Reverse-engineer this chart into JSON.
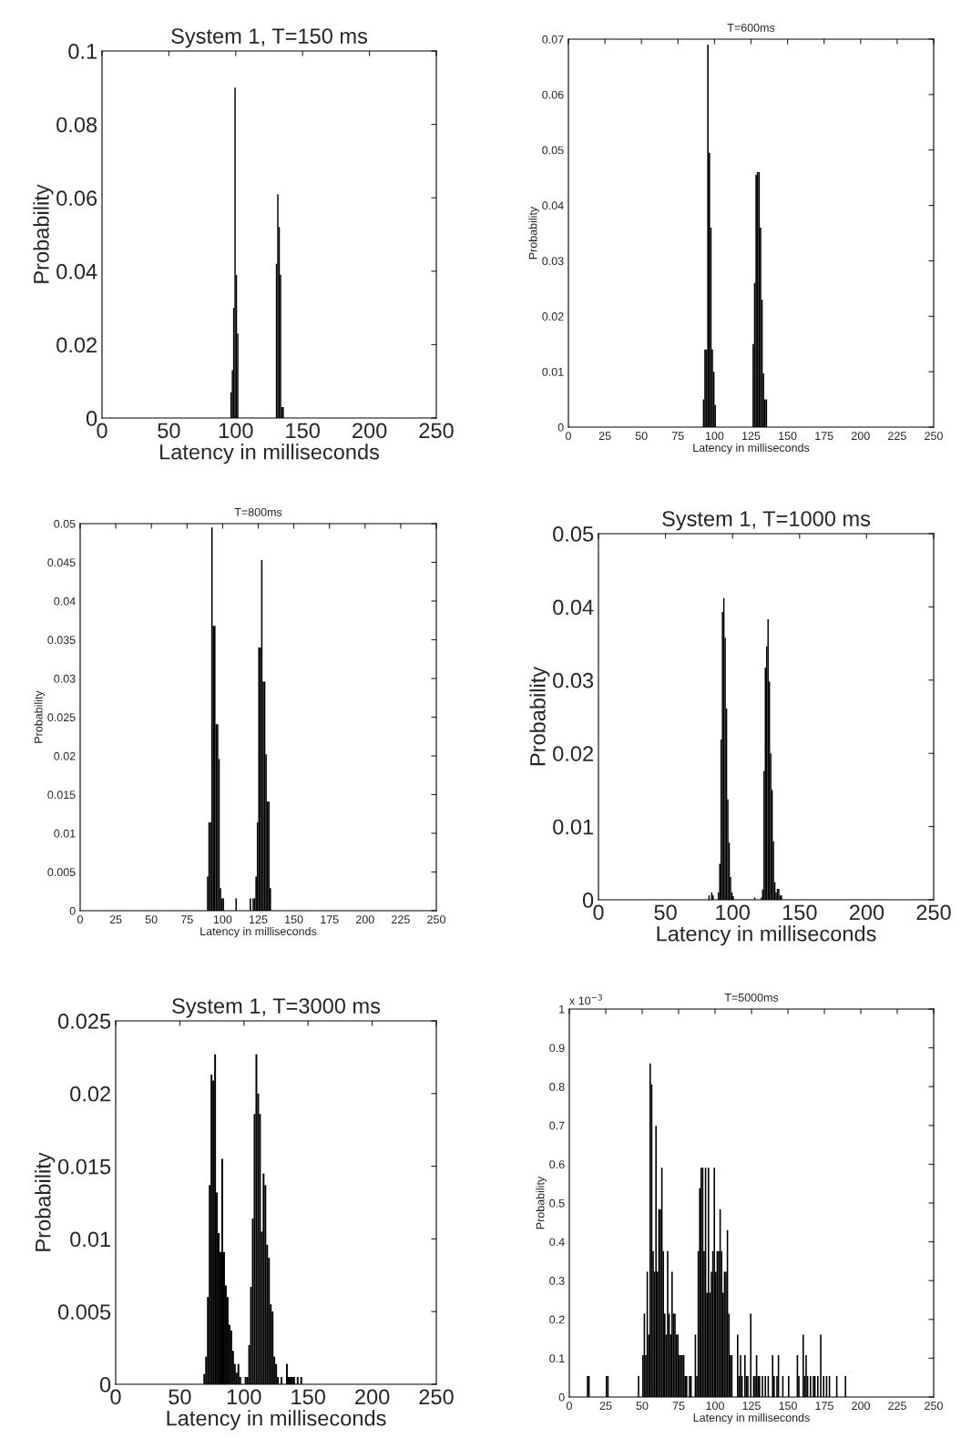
{
  "chart_data": [
    {
      "type": "histogram",
      "title": "System 1, T=150 ms",
      "xlabel": "Latency in milliseconds",
      "ylabel": "Probability",
      "color": "#000000",
      "bins": [
        96,
        97,
        98,
        99,
        100,
        101,
        102,
        130,
        131,
        132,
        133,
        134,
        135,
        136
      ],
      "values": [
        0.007,
        0.013,
        0.03,
        0.09,
        0.039,
        0.023,
        0,
        0.042,
        0.061,
        0.052,
        0.039,
        0.003,
        0.003
      ],
      "xlim": [
        0,
        250
      ],
      "ylim": [
        0,
        0.1
      ],
      "xticks": [
        0,
        50,
        100,
        150,
        200,
        250
      ],
      "yticks": [
        0,
        0.02,
        0.04,
        0.06,
        0.08,
        0.1
      ]
    },
    {
      "type": "histogram",
      "title": "T=600ms",
      "xlabel": "Latency in milliseconds",
      "ylabel": "Probability",
      "color": "#000000",
      "bins": [
        92,
        93,
        94,
        95,
        96,
        97,
        98,
        99,
        100,
        101,
        126,
        127,
        128,
        129,
        130,
        131,
        132,
        133,
        134,
        135,
        136
      ],
      "values": [
        0.005,
        0.014,
        0.014,
        0.069,
        0.0495,
        0.036,
        0.014,
        0.01,
        0.004,
        0,
        0.015,
        0.026,
        0.0455,
        0.046,
        0.046,
        0.036,
        0.023,
        0.0097,
        0.005,
        0.005
      ],
      "xlim": [
        0,
        250
      ],
      "ylim": [
        0,
        0.07
      ],
      "xticks": [
        0,
        25,
        50,
        75,
        100,
        125,
        150,
        175,
        200,
        225,
        250
      ],
      "yticks": [
        0,
        0.01,
        0.02,
        0.03,
        0.04,
        0.05,
        0.06,
        0.07
      ]
    },
    {
      "type": "histogram",
      "title": "T=800ms",
      "xlabel": "Latency in milliseconds",
      "ylabel": "Probability",
      "color": "#000000",
      "bins": [
        89,
        90,
        91,
        92,
        93,
        94,
        95,
        96,
        97,
        98,
        99,
        100,
        101,
        109,
        110,
        119,
        120,
        121,
        122,
        123,
        124,
        125,
        126,
        127,
        128,
        129,
        130,
        131,
        132,
        133,
        134
      ],
      "values": [
        0.0044,
        0.0114,
        0.0114,
        0.0495,
        0.0368,
        0.0368,
        0.0241,
        0.0241,
        0.0196,
        0.0029,
        0.0016,
        0.0016,
        0,
        0.0016,
        0,
        0.0016,
        0,
        0.0016,
        0.0016,
        0.0044,
        0.0114,
        0.034,
        0.034,
        0.0453,
        0.0296,
        0.0296,
        0.0202,
        0.0141,
        0.0141,
        0.0029
      ],
      "xlim": [
        0,
        250
      ],
      "ylim": [
        0,
        0.05
      ],
      "xticks": [
        0,
        25,
        50,
        75,
        100,
        125,
        150,
        175,
        200,
        225,
        250
      ],
      "yticks": [
        0,
        0.005,
        0.01,
        0.015,
        0.02,
        0.025,
        0.03,
        0.035,
        0.04,
        0.045,
        0.05
      ]
    },
    {
      "type": "histogram",
      "title": "System 1, T=1000 ms",
      "xlabel": "Latency in milliseconds",
      "ylabel": "Probability",
      "color": "#000000",
      "bins": [
        82,
        83,
        84,
        85,
        86,
        89,
        90,
        91,
        92,
        93,
        94,
        95,
        96,
        97,
        98,
        99,
        100,
        101,
        116,
        117,
        121,
        122,
        123,
        124,
        125,
        126,
        127,
        128,
        129,
        130,
        131,
        132,
        133,
        134,
        135,
        136,
        137
      ],
      "values": [
        0.0006,
        0,
        0.001,
        0.0006,
        0,
        0.001,
        0.0049,
        0.0219,
        0.0393,
        0.0412,
        0.0358,
        0.0261,
        0.0137,
        0.0078,
        0.0031,
        0.001,
        0.0005,
        0,
        0.0003,
        0,
        0.0003,
        0.0014,
        0.0176,
        0.0317,
        0.0346,
        0.0383,
        0.0298,
        0.02,
        0.015,
        0.008,
        0.0024,
        0.001,
        0.0015,
        0.0015,
        0.0006,
        0.0006
      ],
      "xlim": [
        0,
        250
      ],
      "ylim": [
        0,
        0.05
      ],
      "xticks": [
        0,
        50,
        100,
        150,
        200,
        250
      ],
      "yticks": [
        0,
        0.01,
        0.02,
        0.03,
        0.04,
        0.05
      ]
    },
    {
      "type": "histogram",
      "title": "System 1, T=3000 ms",
      "xlabel": "Latency in milliseconds",
      "ylabel": "Probability",
      "color": "#000000",
      "bins": [
        68.4,
        69.8,
        71.2,
        72.6,
        74,
        75.4,
        76.8,
        78.2,
        79.6,
        81,
        82.4,
        83.8,
        85.2,
        86.6,
        88,
        89.4,
        90.8,
        92.2,
        93.6,
        95,
        96.4,
        97.8,
        99.2,
        100.6,
        102,
        103.4,
        104.8,
        106.2,
        107.6,
        109,
        110.4,
        111.8,
        113.2,
        114.6,
        116,
        117.4,
        118.8,
        120.2,
        121.6,
        123,
        124.4,
        125.8,
        127.2,
        128.6,
        130,
        131.4,
        132.8,
        134.2,
        135.6,
        137,
        138.4,
        139.8,
        141.2,
        142.6,
        144,
        145.4
      ],
      "values": [
        0.0007,
        0.0019,
        0.006,
        0.0137,
        0.0213,
        0.0209,
        0.0227,
        0.0132,
        0.0104,
        0.0091,
        0.0155,
        0.0091,
        0.0068,
        0.006,
        0.0041,
        0.0037,
        0.0023,
        0.0014,
        0.0008,
        0.0014,
        0.0005,
        0,
        0,
        0.0005,
        0.0005,
        0.0027,
        0.0067,
        0.0114,
        0.0186,
        0.0227,
        0.02,
        0.0186,
        0.0105,
        0.0145,
        0.0137,
        0.0096,
        0.0087,
        0.0055,
        0.005,
        0.0019,
        0.0014,
        0.0005,
        0,
        0.0005,
        0,
        0,
        0.0014,
        0.0005,
        0.0005,
        0.0005,
        0.0005,
        0,
        0.0005,
        0,
        0.0005
      ],
      "xlim": [
        0,
        250
      ],
      "ylim": [
        0,
        0.025
      ],
      "xticks": [
        0,
        50,
        100,
        150,
        200,
        250
      ],
      "yticks": [
        0,
        0.005,
        0.01,
        0.015,
        0.02,
        0.025
      ]
    },
    {
      "type": "histogram",
      "title": "T=5000ms",
      "xlabel": "Latency in milliseconds",
      "ylabel": "Probability",
      "color": "#000000",
      "annotations": [
        "x 10$^{−3}$"
      ],
      "bins": [
        12,
        13,
        14,
        25,
        26,
        27,
        47,
        48,
        50,
        51,
        52,
        53,
        54,
        55,
        56,
        57,
        58,
        59,
        60,
        61,
        62,
        63,
        64,
        65,
        66,
        67,
        68,
        69,
        70,
        71,
        72,
        73,
        74,
        75,
        76,
        77,
        78,
        79,
        80,
        81,
        82,
        83,
        84,
        86,
        87,
        88,
        89,
        90,
        91,
        92,
        93,
        94,
        95,
        96,
        97,
        98,
        99,
        100,
        101,
        102,
        103,
        104,
        105,
        106,
        107,
        108,
        109,
        110,
        111,
        112,
        115,
        116,
        117,
        118,
        119,
        120,
        121,
        122,
        123,
        124,
        125,
        126,
        127,
        128,
        129,
        130,
        131,
        132,
        133,
        134,
        135,
        136,
        137,
        139,
        140,
        141,
        142,
        143,
        144,
        146,
        147,
        150,
        151,
        156,
        157,
        158,
        160,
        161,
        162,
        163,
        164,
        165,
        166,
        167,
        168,
        169,
        170,
        171,
        172,
        173,
        174,
        175,
        176,
        177,
        178,
        179,
        183,
        184,
        189,
        190
      ],
      "values": [
        0.054,
        0.054,
        0,
        0.054,
        0.054,
        0,
        0.054,
        0,
        0.108,
        0.215,
        0.108,
        0.323,
        0.161,
        0.86,
        0.806,
        0.376,
        0.323,
        0.699,
        0.323,
        0.484,
        0.484,
        0.591,
        0.376,
        0.215,
        0.161,
        0.376,
        0.215,
        0.161,
        0.323,
        0.215,
        0.215,
        0.161,
        0.161,
        0.108,
        0.108,
        0.108,
        0.108,
        0.054,
        0.054,
        0,
        0.054,
        0.054,
        0,
        0.161,
        0.054,
        0.376,
        0.538,
        0.591,
        0.591,
        0.376,
        0.591,
        0.269,
        0.591,
        0.269,
        0.323,
        0.376,
        0.591,
        0.323,
        0.376,
        0.376,
        0.484,
        0.376,
        0.269,
        0.323,
        0.323,
        0.43,
        0.215,
        0.108,
        0.108,
        0,
        0.161,
        0.054,
        0.108,
        0.054,
        0,
        0.108,
        0.054,
        0.054,
        0,
        0.215,
        0,
        0.054,
        0.054,
        0.108,
        0.054,
        0.054,
        0,
        0.054,
        0,
        0.054,
        0,
        0.054,
        0,
        0.108,
        0.054,
        0,
        0.054,
        0.108,
        0,
        0.054,
        0,
        0.054,
        0,
        0.108,
        0.054,
        0,
        0.161,
        0.054,
        0.108,
        0.054,
        0,
        0.054,
        0,
        0.054,
        0.054,
        0,
        0.054,
        0,
        0.161,
        0,
        0.054,
        0,
        0.054,
        0,
        0.054,
        0,
        0.054,
        0,
        0.054
      ],
      "xlim": [
        0,
        250
      ],
      "ylim": [
        0,
        1
      ],
      "xticks": [
        0,
        25,
        50,
        75,
        100,
        125,
        150,
        175,
        200,
        225,
        250
      ],
      "yticks": [
        0,
        0.1,
        0.2,
        0.3,
        0.4,
        0.5,
        0.6,
        0.7,
        0.8,
        0.9,
        1
      ]
    }
  ]
}
